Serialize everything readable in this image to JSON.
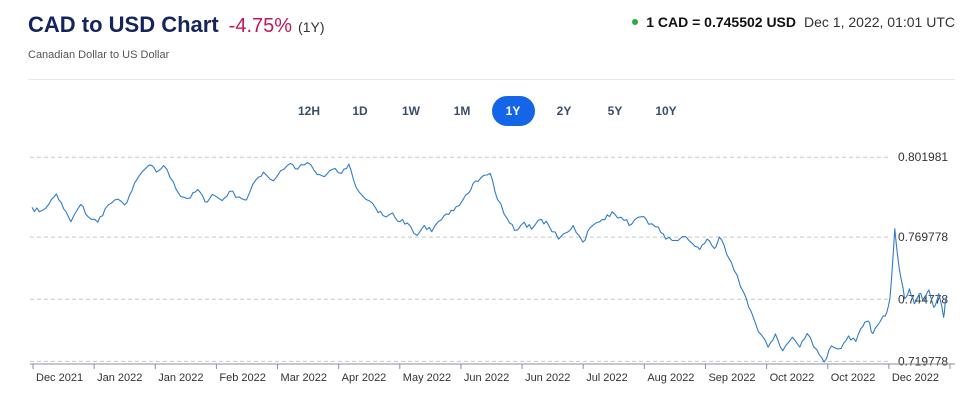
{
  "header": {
    "title": "CAD to USD Chart",
    "change": "-4.75%",
    "period": "(1Y)",
    "subtitle": "Canadian Dollar to US Dollar",
    "rate": "1 CAD = 0.745502 USD",
    "timestamp": "Dec 1, 2022, 01:01 UTC"
  },
  "tabs": [
    {
      "label": "12H",
      "active": false
    },
    {
      "label": "1D",
      "active": false
    },
    {
      "label": "1W",
      "active": false
    },
    {
      "label": "1M",
      "active": false
    },
    {
      "label": "1Y",
      "active": true
    },
    {
      "label": "2Y",
      "active": false
    },
    {
      "label": "5Y",
      "active": false
    },
    {
      "label": "10Y",
      "active": false
    }
  ],
  "colors": {
    "title": "#14245c",
    "change": "#c2185b",
    "status_dot": "#2eaa3c",
    "active_tab": "#1565e8",
    "line": "#2f7dc8"
  },
  "chart_data": {
    "type": "line",
    "title": "",
    "xlabel": "",
    "ylabel": "",
    "y_ticks": [
      "0.801981",
      "0.769778",
      "0.744778",
      "0.719778"
    ],
    "x_ticks": [
      "Dec 2021",
      "Jan 2022",
      "Jan 2022",
      "Feb 2022",
      "Mar 2022",
      "Apr 2022",
      "May 2022",
      "Jun 2022",
      "Jun 2022",
      "Jul 2022",
      "Aug 2022",
      "Sep 2022",
      "Oct 2022",
      "Oct 2022",
      "Dec 2022"
    ],
    "ylim": [
      0.7187,
      0.8057
    ],
    "grid": "horizontal dashed",
    "series": [
      {
        "points": [
          [
            "2021-12-01",
            0.7818
          ],
          [
            "2021-12-04",
            0.78
          ],
          [
            "2021-12-08",
            0.7832
          ],
          [
            "2021-12-11",
            0.7872
          ],
          [
            "2021-12-14",
            0.7812
          ],
          [
            "2021-12-17",
            0.776
          ],
          [
            "2021-12-21",
            0.783
          ],
          [
            "2021-12-24",
            0.778
          ],
          [
            "2021-12-28",
            0.7758
          ],
          [
            "2021-12-31",
            0.7812
          ],
          [
            "2022-01-04",
            0.7848
          ],
          [
            "2022-01-08",
            0.7828
          ],
          [
            "2022-01-11",
            0.7885
          ],
          [
            "2022-01-14",
            0.7945
          ],
          [
            "2022-01-18",
            0.7988
          ],
          [
            "2022-01-21",
            0.796
          ],
          [
            "2022-01-24",
            0.7986
          ],
          [
            "2022-01-28",
            0.792
          ],
          [
            "2022-01-31",
            0.7862
          ],
          [
            "2022-02-04",
            0.7856
          ],
          [
            "2022-02-07",
            0.789
          ],
          [
            "2022-02-10",
            0.784
          ],
          [
            "2022-02-13",
            0.787
          ],
          [
            "2022-02-17",
            0.7845
          ],
          [
            "2022-02-20",
            0.7882
          ],
          [
            "2022-02-24",
            0.786
          ],
          [
            "2022-02-27",
            0.7848
          ],
          [
            "2022-03-03",
            0.793
          ],
          [
            "2022-03-06",
            0.796
          ],
          [
            "2022-03-10",
            0.7925
          ],
          [
            "2022-03-13",
            0.7965
          ],
          [
            "2022-03-17",
            0.7995
          ],
          [
            "2022-03-20",
            0.7972
          ],
          [
            "2022-03-24",
            0.7998
          ],
          [
            "2022-03-28",
            0.795
          ],
          [
            "2022-03-31",
            0.7942
          ],
          [
            "2022-04-03",
            0.797
          ],
          [
            "2022-04-07",
            0.7955
          ],
          [
            "2022-04-10",
            0.7992
          ],
          [
            "2022-04-13",
            0.7898
          ],
          [
            "2022-04-17",
            0.785
          ],
          [
            "2022-04-21",
            0.7815
          ],
          [
            "2022-04-24",
            0.7785
          ],
          [
            "2022-04-28",
            0.7795
          ],
          [
            "2022-05-01",
            0.776
          ],
          [
            "2022-05-04",
            0.7755
          ],
          [
            "2022-05-08",
            0.7705
          ],
          [
            "2022-05-11",
            0.7745
          ],
          [
            "2022-05-14",
            0.772
          ],
          [
            "2022-05-18",
            0.7768
          ],
          [
            "2022-05-21",
            0.779
          ],
          [
            "2022-05-24",
            0.782
          ],
          [
            "2022-05-28",
            0.7868
          ],
          [
            "2022-05-31",
            0.7915
          ],
          [
            "2022-06-03",
            0.7935
          ],
          [
            "2022-06-07",
            0.7955
          ],
          [
            "2022-06-10",
            0.785
          ],
          [
            "2022-06-14",
            0.7772
          ],
          [
            "2022-06-17",
            0.7725
          ],
          [
            "2022-06-21",
            0.7758
          ],
          [
            "2022-06-24",
            0.773
          ],
          [
            "2022-06-28",
            0.777
          ],
          [
            "2022-07-01",
            0.7745
          ],
          [
            "2022-07-05",
            0.769
          ],
          [
            "2022-07-08",
            0.7715
          ],
          [
            "2022-07-11",
            0.7745
          ],
          [
            "2022-07-15",
            0.7678
          ],
          [
            "2022-07-18",
            0.7735
          ],
          [
            "2022-07-22",
            0.776
          ],
          [
            "2022-07-25",
            0.7788
          ],
          [
            "2022-07-28",
            0.7792
          ],
          [
            "2022-08-01",
            0.7765
          ],
          [
            "2022-08-04",
            0.775
          ],
          [
            "2022-08-08",
            0.778
          ],
          [
            "2022-08-11",
            0.775
          ],
          [
            "2022-08-15",
            0.7738
          ],
          [
            "2022-08-18",
            0.769
          ],
          [
            "2022-08-22",
            0.7685
          ],
          [
            "2022-08-25",
            0.77
          ],
          [
            "2022-08-29",
            0.7672
          ],
          [
            "2022-09-01",
            0.7648
          ],
          [
            "2022-09-04",
            0.769
          ],
          [
            "2022-09-07",
            0.7652
          ],
          [
            "2022-09-09",
            0.7698
          ],
          [
            "2022-09-12",
            0.763
          ],
          [
            "2022-09-15",
            0.7565
          ],
          [
            "2022-09-19",
            0.7475
          ],
          [
            "2022-09-22",
            0.74
          ],
          [
            "2022-09-25",
            0.7318
          ],
          [
            "2022-09-29",
            0.7255
          ],
          [
            "2022-10-02",
            0.7308
          ],
          [
            "2022-10-05",
            0.724
          ],
          [
            "2022-10-09",
            0.7295
          ],
          [
            "2022-10-12",
            0.7255
          ],
          [
            "2022-10-15",
            0.731
          ],
          [
            "2022-10-19",
            0.7245
          ],
          [
            "2022-10-22",
            0.7195
          ],
          [
            "2022-10-25",
            0.726
          ],
          [
            "2022-10-29",
            0.725
          ],
          [
            "2022-11-01",
            0.73
          ],
          [
            "2022-11-04",
            0.7278
          ],
          [
            "2022-11-07",
            0.734
          ],
          [
            "2022-11-09",
            0.736
          ],
          [
            "2022-11-11",
            0.731
          ],
          [
            "2022-11-14",
            0.7358
          ],
          [
            "2022-11-16",
            0.738
          ],
          [
            "2022-11-18",
            0.745
          ],
          [
            "2022-11-20",
            0.7732
          ],
          [
            "2022-11-22",
            0.756
          ],
          [
            "2022-11-24",
            0.745
          ],
          [
            "2022-11-26",
            0.749
          ],
          [
            "2022-11-28",
            0.743
          ],
          [
            "2022-11-30",
            0.747
          ],
          [
            "2022-12-02",
            0.744
          ],
          [
            "2022-12-04",
            0.7485
          ],
          [
            "2022-12-06",
            0.7415
          ],
          [
            "2022-12-08",
            0.747
          ],
          [
            "2022-12-10",
            0.7375
          ],
          [
            "2022-12-11",
            0.7455
          ]
        ]
      }
    ]
  }
}
